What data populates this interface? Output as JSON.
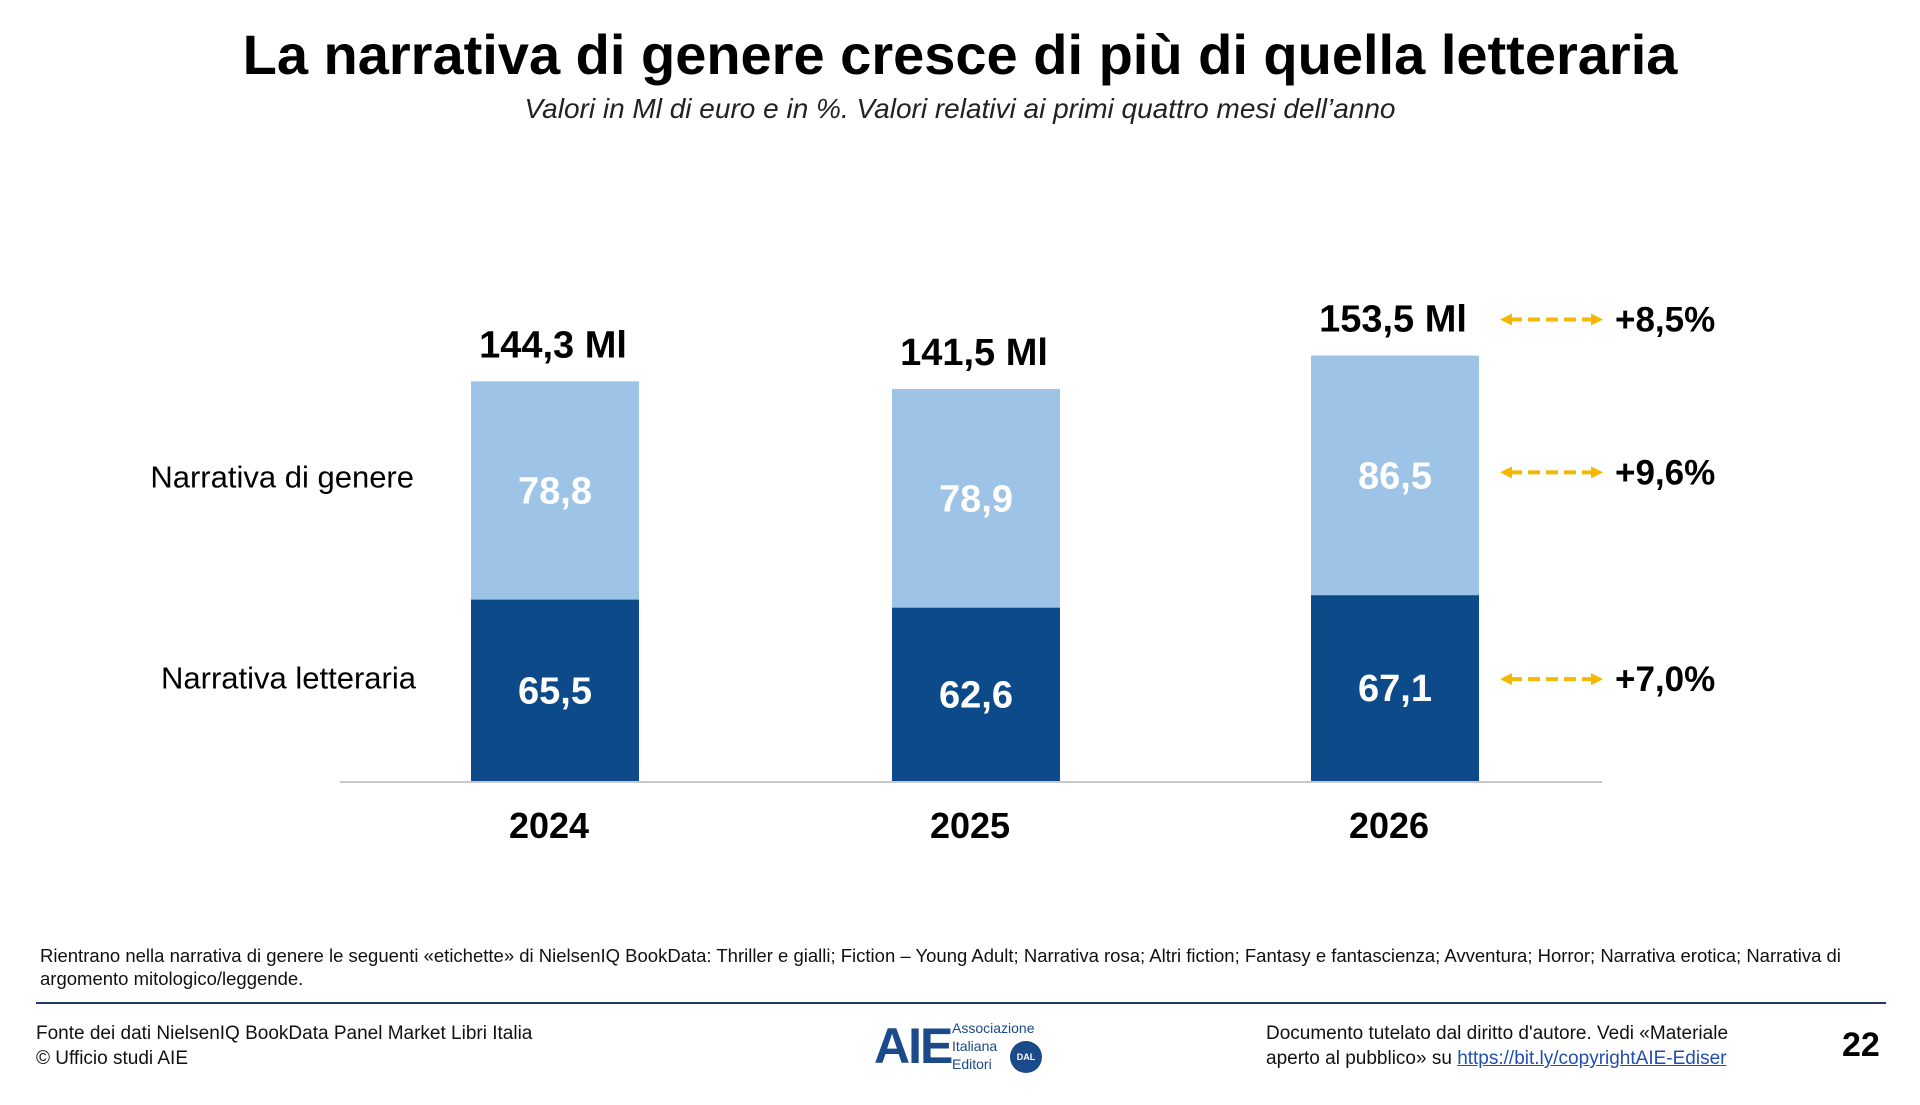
{
  "title": "La narrativa di genere cresce di più di quella letteraria",
  "subtitle": "Valori in Ml di euro e in %. Valori relativi ai primi quattro mesi dell’anno",
  "colors": {
    "genere": "#9dc3e6",
    "letteraria": "#0d4a8a",
    "arrow": "#f5b800",
    "axis": "#c8c8c8"
  },
  "chart_data": {
    "type": "bar",
    "stacked": true,
    "categories": [
      "2024",
      "2025",
      "2026"
    ],
    "series": [
      {
        "name": "Narrativa letteraria",
        "values": [
          65.5,
          62.6,
          67.1
        ],
        "labels": [
          "65,5",
          "62,6",
          "67,1"
        ]
      },
      {
        "name": "Narrativa di genere",
        "values": [
          78.8,
          78.9,
          86.5
        ],
        "labels": [
          "78,8",
          "78,9",
          "86,5"
        ]
      }
    ],
    "totals": [
      144.3,
      141.5,
      153.5
    ],
    "total_labels": [
      "144,3 Ml",
      "141,5 Ml",
      "153,5 Ml"
    ],
    "growth": {
      "total": "+8,5%",
      "Narrativa di genere": "+9,6%",
      "Narrativa letteraria": "+7,0%"
    },
    "ylim": [
      0,
      160
    ],
    "grid": false
  },
  "footer": {
    "note": "Rientrano nella narrativa di genere le seguenti «etichette» di NielsenIQ BookData: Thriller e gialli; Fiction – Young Adult; Narrativa rosa; Altri fiction; Fantasy e fantascienza; Avventura; Horror; Narrativa erotica; Narrativa di argomento mitologico/leggende.",
    "source_line1": "Fonte dei dati NielsenIQ BookData Panel Market Libri Italia",
    "source_line2": "© Ufficio studi AIE",
    "logo_mark": "AIE",
    "logo_line1": "Associazione",
    "logo_line2": "Italiana",
    "logo_line3": "Editori",
    "logo_seal": "DAL 1869",
    "rights_line1": "Documento tutelato dal diritto d'autore. Vedi «Materiale",
    "rights_line2_prefix": "aperto al pubblico» su ",
    "rights_link": "https://bit.ly/copyrightAIE-Ediser",
    "page_number": "22"
  }
}
